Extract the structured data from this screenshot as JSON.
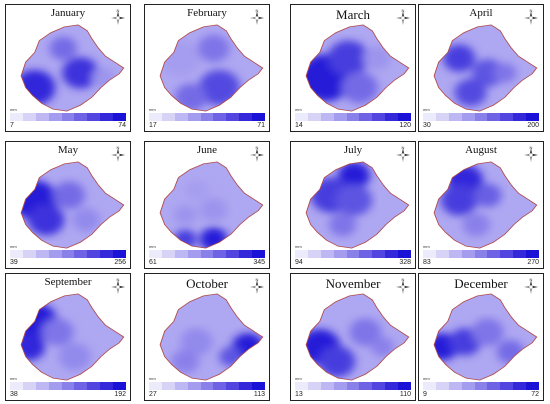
{
  "panels": [
    {
      "month": "January",
      "min": "7",
      "max": "74",
      "north": "N",
      "unit": "mm",
      "scheme": 0,
      "big": false
    },
    {
      "month": "February",
      "min": "17",
      "max": "71",
      "north": "N",
      "unit": "mm",
      "scheme": 1,
      "big": false
    },
    {
      "month": "March",
      "min": "14",
      "max": "120",
      "north": "N",
      "unit": "mm",
      "scheme": 2,
      "big": true
    },
    {
      "month": "April",
      "min": "30",
      "max": "200",
      "north": "N",
      "unit": "mm",
      "scheme": 3,
      "big": false
    },
    {
      "month": "May",
      "min": "39",
      "max": "256",
      "north": "N",
      "unit": "mm",
      "scheme": 4,
      "big": false
    },
    {
      "month": "June",
      "min": "61",
      "max": "345",
      "north": "N",
      "unit": "mm",
      "scheme": 5,
      "big": false
    },
    {
      "month": "July",
      "min": "94",
      "max": "328",
      "north": "N",
      "unit": "mm",
      "scheme": 6,
      "big": false
    },
    {
      "month": "August",
      "min": "83",
      "max": "270",
      "north": "N",
      "unit": "mm",
      "scheme": 7,
      "big": false
    },
    {
      "month": "September",
      "min": "38",
      "max": "192",
      "north": "N",
      "unit": "mm",
      "scheme": 8,
      "big": false
    },
    {
      "month": "October",
      "min": "27",
      "max": "113",
      "north": "N",
      "unit": "mm",
      "scheme": 9,
      "big": true
    },
    {
      "month": "November",
      "min": "13",
      "max": "110",
      "north": "N",
      "unit": "mm",
      "scheme": 10,
      "big": true
    },
    {
      "month": "December",
      "min": "9",
      "max": "72",
      "north": "N",
      "unit": "mm",
      "scheme": 11,
      "big": true
    }
  ],
  "colors": {
    "light": "#e4e2fb",
    "mid": "#8a80ea",
    "dark": "#1a12d6",
    "border": "#b04a4a",
    "legend": [
      "#ecebfb",
      "#d6d3f7",
      "#bdb8f3",
      "#a49cef",
      "#8a80ea",
      "#6f62e5",
      "#5245e0",
      "#3528da",
      "#1a12d6"
    ]
  }
}
